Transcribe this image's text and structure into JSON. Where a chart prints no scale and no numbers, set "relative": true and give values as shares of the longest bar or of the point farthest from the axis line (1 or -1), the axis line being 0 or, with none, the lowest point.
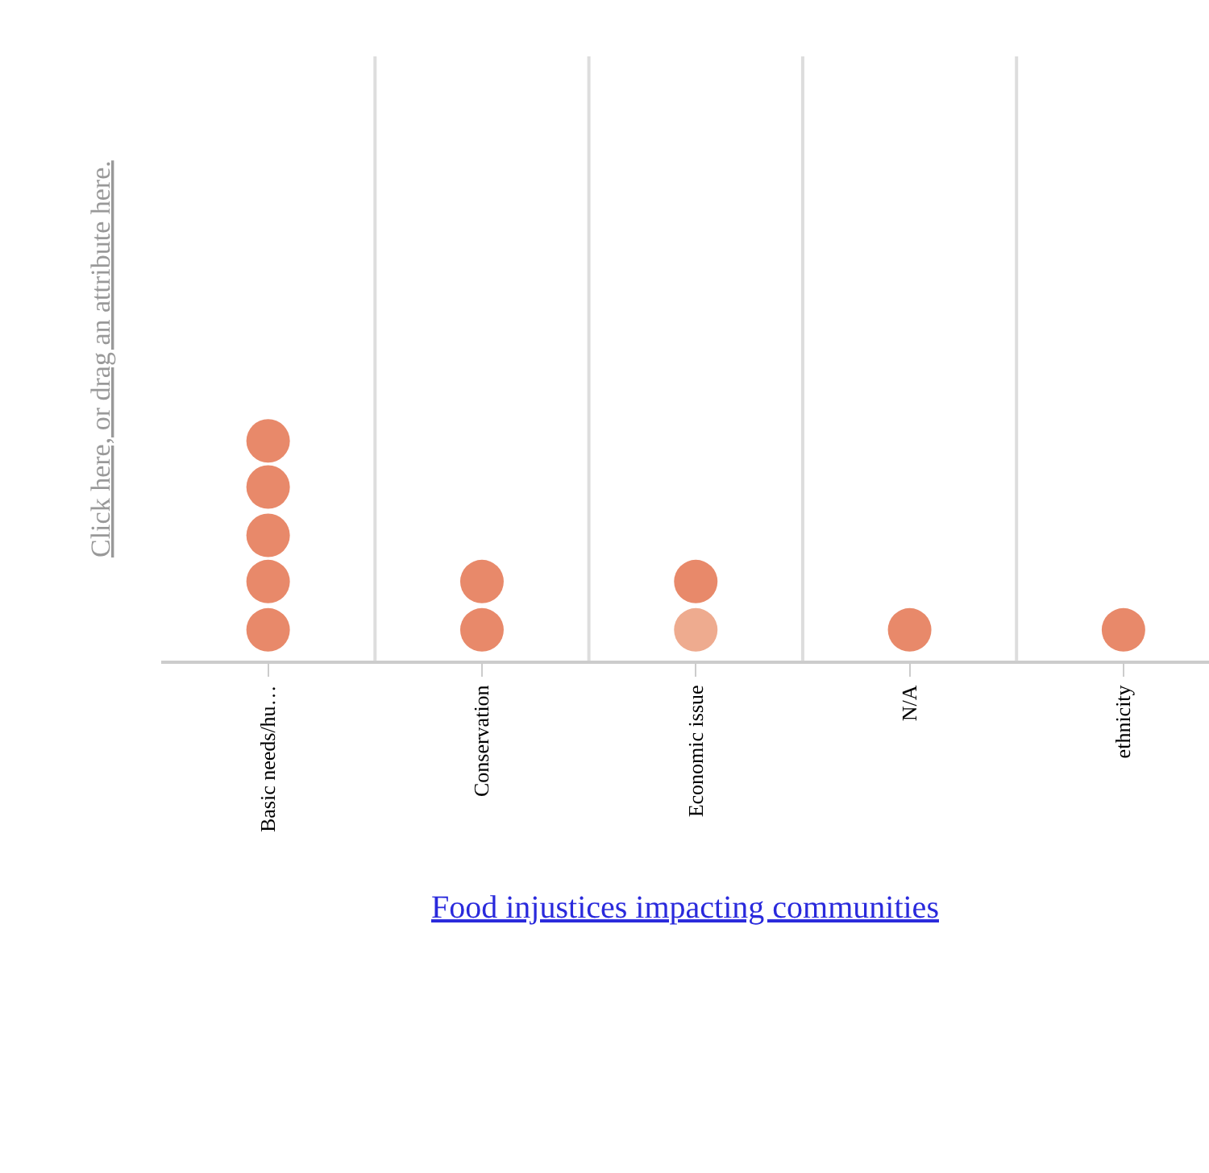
{
  "chart_data": {
    "type": "scatter",
    "relative": true,
    "categories": [
      "Basic needs/hu…",
      "Conservation",
      "Economic issue",
      "N/A",
      "ethnicity"
    ],
    "xlabel": "Food injustices impacting communities",
    "ylabel": "Click here, or drag an attribute here.",
    "grid": "x",
    "marker": "circle",
    "series": [
      {
        "x": [
          "Basic needs/hu…",
          "Basic needs/hu…",
          "Basic needs/hu…",
          "Basic needs/hu…",
          "Basic needs/hu…",
          "Conservation",
          "Conservation",
          "Economic issue",
          "Economic issue",
          "N/A",
          "ethnicity"
        ],
        "values": [
          0.14,
          0.36,
          0.57,
          0.79,
          1,
          0.14,
          0.36,
          0.14,
          0.36,
          0.14,
          0.14
        ],
        "colors": [
          "#e8896a",
          "#e8896a",
          "#e8896a",
          "#e8896a",
          "#e8896a",
          "#e8896a",
          "#e8896a",
          "#eeab8f",
          "#e8896a",
          "#e8896a",
          "#e8896a"
        ]
      }
    ]
  }
}
